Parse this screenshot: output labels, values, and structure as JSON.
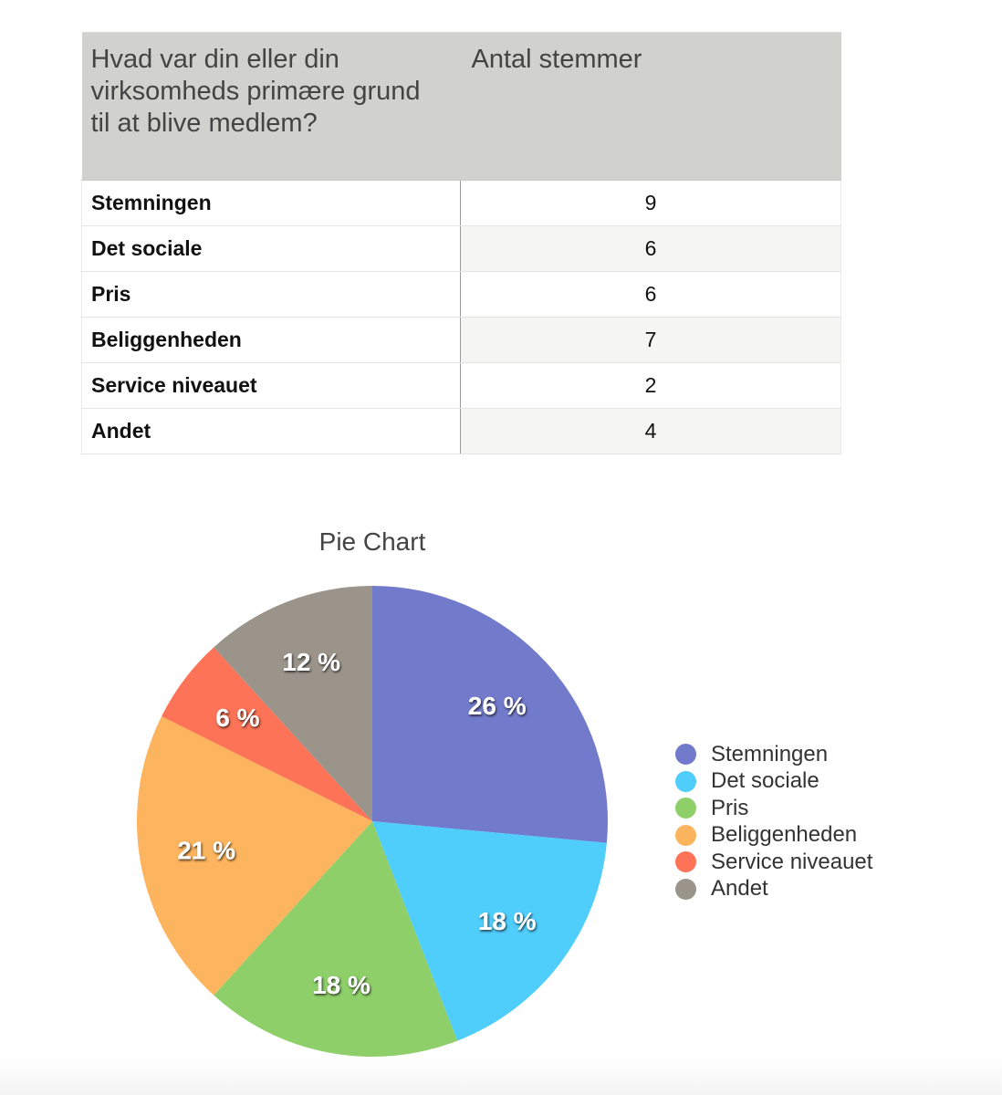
{
  "table": {
    "header_question": "Hvad var din eller din virksomheds primære grund til at blive medlem?",
    "header_votes": "Antal stemmer",
    "rows": [
      {
        "label": "Stemningen",
        "value": "9"
      },
      {
        "label": "Det sociale",
        "value": "6"
      },
      {
        "label": "Pris",
        "value": "6"
      },
      {
        "label": "Beliggenheden",
        "value": "7"
      },
      {
        "label": "Service niveauet",
        "value": "2"
      },
      {
        "label": "Andet",
        "value": "4"
      }
    ]
  },
  "chart_data": {
    "type": "pie",
    "title": "Pie Chart",
    "categories": [
      "Stemningen",
      "Det sociale",
      "Pris",
      "Beliggenheden",
      "Service niveauet",
      "Andet"
    ],
    "values": [
      9,
      6,
      6,
      7,
      2,
      4
    ],
    "percent_labels": [
      "26 %",
      "18 %",
      "18 %",
      "21 %",
      "6 %",
      "12 %"
    ],
    "colors": [
      "#727bcb",
      "#4fcdfb",
      "#8ecf69",
      "#fcb45e",
      "#fc7357",
      "#9a948b"
    ],
    "legend_position": "right"
  }
}
